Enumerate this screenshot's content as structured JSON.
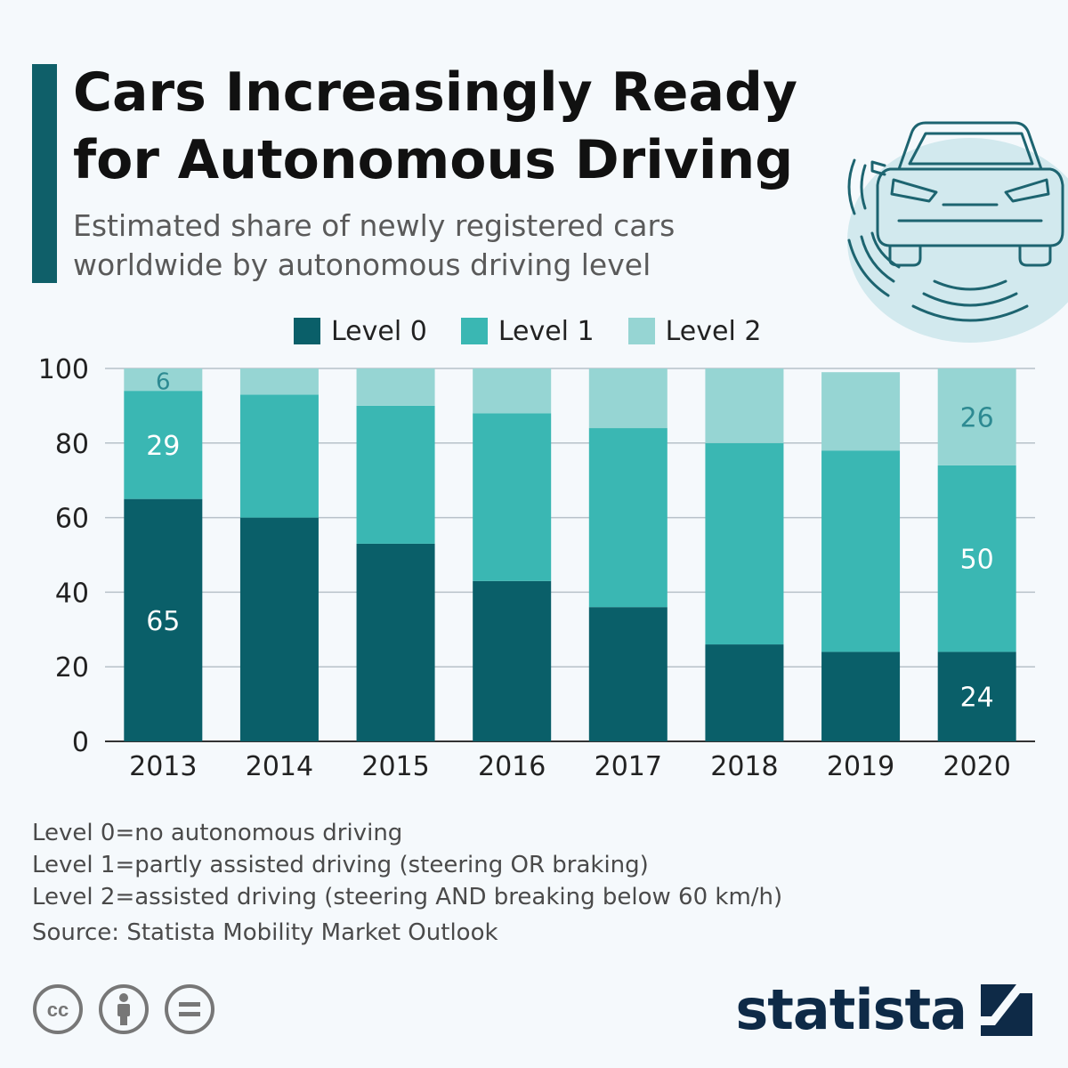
{
  "title": "Cars Increasingly Ready for Autonomous Driving",
  "subtitle": "Estimated share of newly registered cars worldwide by autonomous driving level",
  "notes": [
    "Level 0=no autonomous driving",
    "Level 1=partly assisted driving (steering OR braking)",
    "Level 2=assisted driving (steering AND breaking below 60 km/h)"
  ],
  "source": "Source: Statista Mobility Market Outlook",
  "brand": "statista",
  "colors": {
    "level0": "#0a5f69",
    "level1": "#3ab7b3",
    "level2": "#96d5d3",
    "grid": "#b7c1c9"
  },
  "chart_data": {
    "type": "bar",
    "stacked": true,
    "categories": [
      "2013",
      "2014",
      "2015",
      "2016",
      "2017",
      "2018",
      "2019",
      "2020"
    ],
    "series": [
      {
        "name": "Level 0",
        "color": "#0a5f69",
        "values": [
          65,
          60,
          53,
          43,
          36,
          26,
          24,
          24
        ]
      },
      {
        "name": "Level 1",
        "color": "#3ab7b3",
        "values": [
          29,
          33,
          37,
          45,
          48,
          54,
          54,
          50
        ]
      },
      {
        "name": "Level 2",
        "color": "#96d5d3",
        "values": [
          6,
          7,
          10,
          12,
          16,
          20,
          21,
          26
        ]
      }
    ],
    "data_labels": [
      {
        "category": "2013",
        "series": "Level 0",
        "text": "65"
      },
      {
        "category": "2013",
        "series": "Level 1",
        "text": "29"
      },
      {
        "category": "2013",
        "series": "Level 2",
        "text": "6"
      },
      {
        "category": "2020",
        "series": "Level 0",
        "text": "24"
      },
      {
        "category": "2020",
        "series": "Level 1",
        "text": "50"
      },
      {
        "category": "2020",
        "series": "Level 2",
        "text": "26"
      }
    ],
    "yticks": [
      "0",
      "20",
      "40",
      "60",
      "80",
      "100"
    ],
    "ylim": [
      0,
      100
    ],
    "grid": true,
    "legend": "top"
  }
}
